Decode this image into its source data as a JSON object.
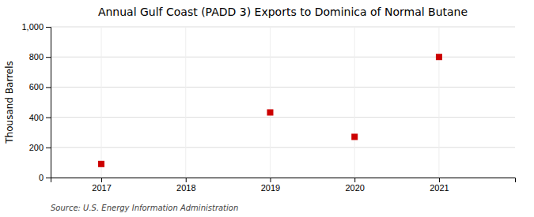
{
  "chart_data": {
    "type": "scatter",
    "title": "Annual Gulf Coast (PADD 3) Exports to Dominica of Normal Butane",
    "ylabel": "Thousand Barrels",
    "annotation": "Source: U.S. Energy Information Administration",
    "x": [
      2017,
      2018,
      2019,
      2020,
      2021
    ],
    "values": [
      90,
      null,
      432,
      270,
      800
    ],
    "color": "#cc0000",
    "marker": "square",
    "xlim": [
      2016.4,
      2021.9
    ],
    "xticks": [
      2017,
      2018,
      2019,
      2020,
      2021
    ],
    "ylim": [
      0,
      1000
    ],
    "yticks": [
      0,
      200,
      400,
      600,
      800,
      {
        "value": 1000,
        "label": "1,000"
      }
    ],
    "grid": true
  }
}
